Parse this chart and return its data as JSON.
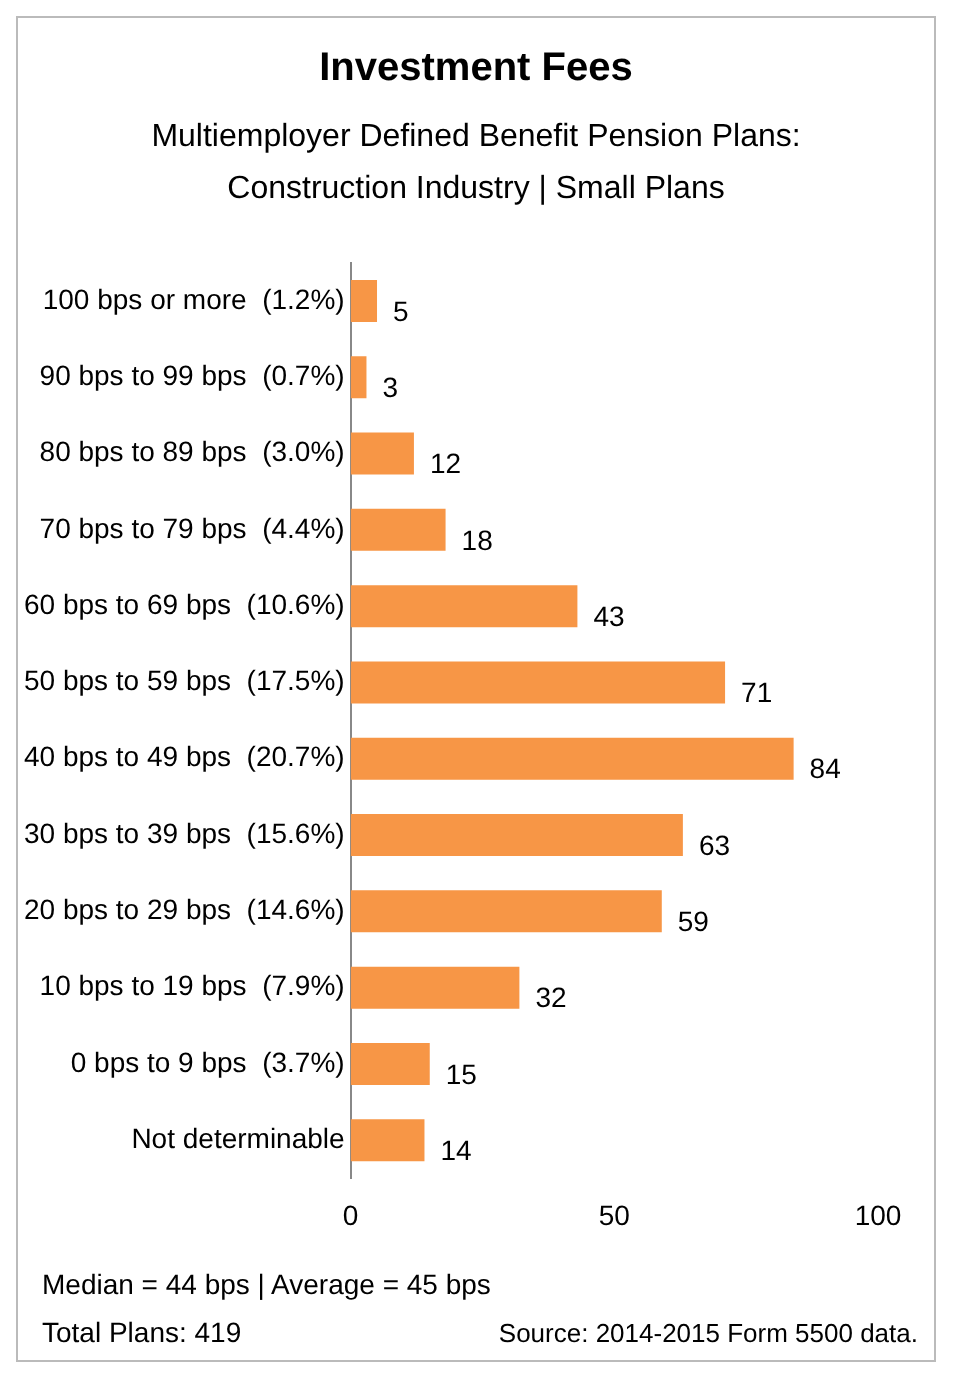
{
  "chart_data": {
    "type": "bar",
    "orientation": "horizontal",
    "title": "Investment Fees",
    "subtitle": "Multiemployer Defined Benefit Pension Plans:\nConstruction Industry | Small Plans",
    "categories": [
      "100 bps or more  (1.2%)",
      "90 bps to 99 bps  (0.7%)",
      "80 bps to 89 bps  (3.0%)",
      "70 bps to 79 bps  (4.4%)",
      "60 bps to 69 bps  (10.6%)",
      "50 bps to 59 bps  (17.5%)",
      "40 bps to 49 bps  (20.7%)",
      "30 bps to 39 bps  (15.6%)",
      "20 bps to 29 bps  (14.6%)",
      "10 bps to 19 bps  (7.9%)",
      "0 bps to 9 bps  (3.7%)",
      "Not determinable"
    ],
    "values": [
      5,
      3,
      12,
      18,
      43,
      71,
      84,
      63,
      59,
      32,
      15,
      14
    ],
    "color": "#f79646",
    "xlim": [
      0,
      100
    ],
    "xticks": [
      0,
      50,
      100
    ],
    "grid": false,
    "legend": false,
    "data_labels": true,
    "annotations": [
      "Median = 44 bps |  Average = 45 bps",
      "Total Plans: 419",
      "Source: 2014-2015 Form 5500 data."
    ]
  }
}
